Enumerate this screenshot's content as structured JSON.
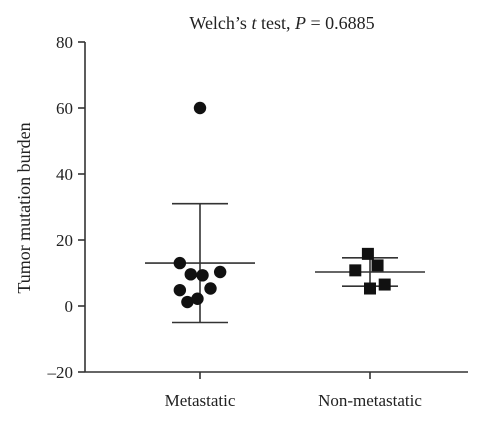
{
  "chart_data": {
    "type": "scatter",
    "title_parts": [
      "Welch’s ",
      "t",
      " test, ",
      "P",
      " = 0.6885"
    ],
    "xlabel": "",
    "ylabel": "Tumor mutation burden",
    "ylim": [
      -20,
      80
    ],
    "yticks": [
      -20,
      0,
      20,
      40,
      60,
      80
    ],
    "categories": [
      "Metastatic",
      "Non-metastatic"
    ],
    "series": [
      {
        "category": "Metastatic",
        "marker": "circle",
        "points": [
          {
            "x": -0.48,
            "y": 13
          },
          {
            "x": -0.48,
            "y": 4.8
          },
          {
            "x": -0.22,
            "y": 9.6
          },
          {
            "x": -0.3,
            "y": 1.2
          },
          {
            "x": -0.06,
            "y": 2.2
          },
          {
            "x": 0.06,
            "y": 9.3
          },
          {
            "x": 0.25,
            "y": 5.3
          },
          {
            "x": 0.48,
            "y": 10.3
          },
          {
            "x": 0.0,
            "y": 60
          }
        ],
        "mean": 13,
        "error_upper": 31,
        "error_lower": -5
      },
      {
        "category": "Non-metastatic",
        "marker": "square",
        "points": [
          {
            "x": -0.05,
            "y": 15.8
          },
          {
            "x": -0.35,
            "y": 10.8
          },
          {
            "x": 0.18,
            "y": 12.3
          },
          {
            "x": 0.0,
            "y": 5.3
          },
          {
            "x": 0.35,
            "y": 6.5
          }
        ],
        "mean": 10.3,
        "error_upper": 14.6,
        "error_lower": 6
      }
    ],
    "colors": {
      "marker": "#111111",
      "axis": "#333333",
      "errorbar": "#333333"
    }
  }
}
